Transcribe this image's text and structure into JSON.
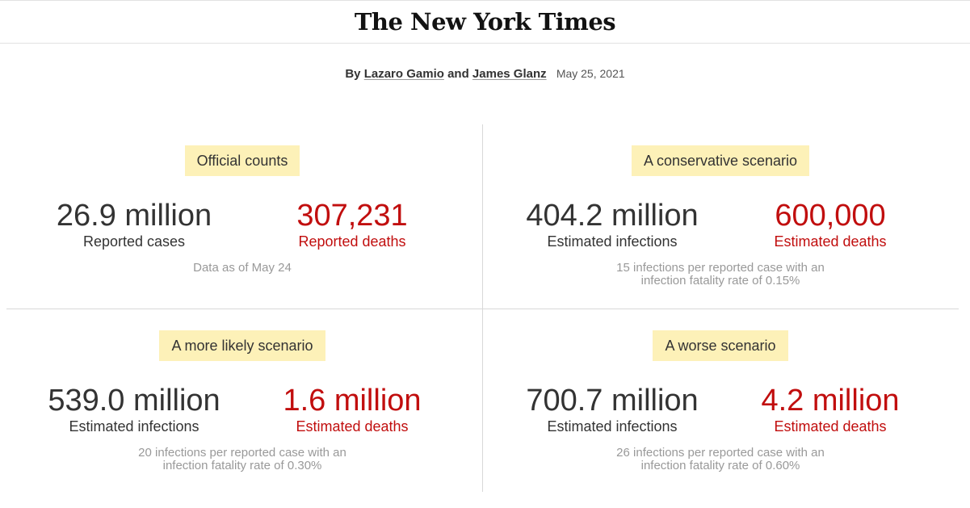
{
  "masthead": {
    "logo": "The New York Times"
  },
  "byline": {
    "by": "By",
    "author1": "Lazaro Gamio",
    "and": "and",
    "author2": "James Glanz",
    "date": "May 25, 2021"
  },
  "panels": [
    {
      "label": "Official counts",
      "left": {
        "value": "26.9 million",
        "caption": "Reported cases"
      },
      "right": {
        "value": "307,231",
        "caption": "Reported deaths"
      },
      "note_line1": "Data as of May 24",
      "note_line2": ""
    },
    {
      "label": "A conservative scenario",
      "left": {
        "value": "404.2 million",
        "caption": "Estimated infections"
      },
      "right": {
        "value": "600,000",
        "caption": "Estimated deaths"
      },
      "note_line1": "15 infections per reported case with an",
      "note_line2": "infection fatality rate of 0.15%"
    },
    {
      "label": "A more likely scenario",
      "left": {
        "value": "539.0 million",
        "caption": "Estimated infections"
      },
      "right": {
        "value": "1.6 million",
        "caption": "Estimated deaths"
      },
      "note_line1": "20 infections per reported case with an",
      "note_line2": "infection fatality rate of 0.30%"
    },
    {
      "label": "A worse scenario",
      "left": {
        "value": "700.7 million",
        "caption": "Estimated infections"
      },
      "right": {
        "value": "4.2 million",
        "caption": "Estimated deaths"
      },
      "note_line1": "26 infections per reported case with an",
      "note_line2": "infection fatality rate of 0.60%"
    }
  ],
  "colors": {
    "highlight": "#fdf1b8",
    "deaths": "#c10e0e",
    "note": "#999999"
  }
}
